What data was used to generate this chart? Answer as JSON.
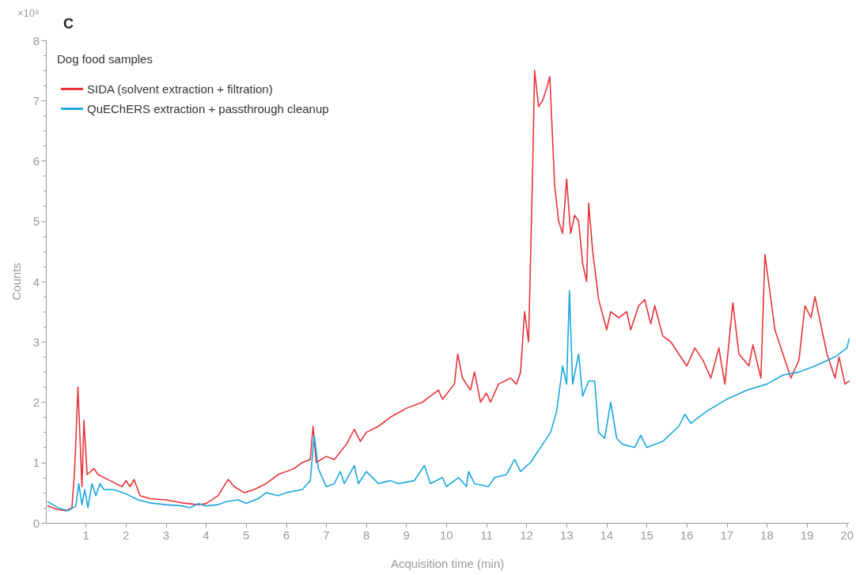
{
  "chart_data": {
    "type": "line",
    "title": "C",
    "xlabel": "Acquisition time (min)",
    "ylabel": "Counts",
    "legend_title": "Dog food samples",
    "annotations": [
      "×10⁸"
    ],
    "legend": "top left",
    "grid": false,
    "marker": "none",
    "line_style": "solid",
    "xlim": [
      0,
      20.05
    ],
    "xticks": [
      1,
      2,
      3,
      4,
      5,
      6,
      7,
      8,
      9,
      10,
      11,
      12,
      13,
      14,
      15,
      16,
      17,
      18,
      19,
      20
    ],
    "ylim": [
      0,
      8
    ],
    "yticks": [
      0,
      1,
      2,
      3,
      4,
      5,
      6,
      7,
      8
    ],
    "series": [
      {
        "name": "SIDA (solvent extraction + filtration)",
        "color": "#e8343a",
        "x": [
          0.05,
          0.3,
          0.5,
          0.65,
          0.72,
          0.8,
          0.9,
          0.95,
          1.03,
          1.2,
          1.3,
          1.6,
          1.9,
          2.0,
          2.1,
          2.2,
          2.35,
          2.6,
          3.0,
          3.4,
          3.8,
          4.0,
          4.3,
          4.55,
          4.7,
          4.95,
          5.2,
          5.5,
          5.8,
          6.2,
          6.4,
          6.6,
          6.67,
          6.75,
          7.0,
          7.2,
          7.5,
          7.7,
          7.85,
          8.0,
          8.3,
          8.6,
          9.0,
          9.4,
          9.6,
          9.8,
          9.9,
          10.2,
          10.28,
          10.4,
          10.6,
          10.7,
          10.85,
          11.0,
          11.1,
          11.3,
          11.6,
          11.75,
          11.85,
          11.95,
          12.05,
          12.15,
          12.2,
          12.3,
          12.4,
          12.5,
          12.58,
          12.7,
          12.8,
          12.9,
          13.0,
          13.1,
          13.2,
          13.3,
          13.4,
          13.5,
          13.55,
          13.65,
          13.8,
          14.0,
          14.1,
          14.3,
          14.5,
          14.6,
          14.8,
          14.95,
          15.1,
          15.2,
          15.4,
          15.6,
          15.8,
          16.0,
          16.2,
          16.4,
          16.6,
          16.8,
          16.95,
          17.15,
          17.3,
          17.55,
          17.65,
          17.85,
          17.95,
          18.2,
          18.4,
          18.6,
          18.8,
          18.95,
          19.1,
          19.2,
          19.5,
          19.7,
          19.8,
          19.95,
          20.05
        ],
        "values": [
          0.28,
          0.22,
          0.2,
          0.25,
          0.9,
          2.25,
          0.6,
          1.7,
          0.8,
          0.9,
          0.8,
          0.7,
          0.6,
          0.7,
          0.6,
          0.72,
          0.45,
          0.4,
          0.38,
          0.33,
          0.3,
          0.32,
          0.45,
          0.72,
          0.6,
          0.5,
          0.55,
          0.65,
          0.8,
          0.9,
          1.0,
          1.05,
          1.6,
          1.0,
          1.1,
          1.05,
          1.3,
          1.55,
          1.35,
          1.5,
          1.6,
          1.75,
          1.9,
          2.0,
          2.1,
          2.2,
          2.05,
          2.3,
          2.8,
          2.4,
          2.2,
          2.5,
          2.0,
          2.15,
          2.0,
          2.3,
          2.4,
          2.3,
          2.5,
          3.5,
          3.0,
          5.8,
          7.5,
          6.9,
          7.0,
          7.2,
          7.4,
          5.6,
          5.0,
          4.8,
          5.7,
          4.8,
          5.1,
          5.0,
          4.3,
          4.0,
          5.3,
          4.5,
          3.7,
          3.2,
          3.5,
          3.4,
          3.5,
          3.2,
          3.6,
          3.7,
          3.3,
          3.6,
          3.1,
          3.0,
          2.8,
          2.6,
          2.9,
          2.7,
          2.4,
          2.9,
          2.3,
          3.65,
          2.8,
          2.6,
          2.95,
          2.4,
          4.45,
          3.2,
          2.8,
          2.4,
          2.7,
          3.6,
          3.4,
          3.75,
          2.8,
          2.4,
          2.75,
          2.3,
          2.35
        ]
      },
      {
        "name": "QuEChERS extraction + passthrough cleanup",
        "color": "#1aa7e0",
        "x": [
          0.05,
          0.3,
          0.55,
          0.75,
          0.82,
          0.9,
          0.97,
          1.05,
          1.15,
          1.25,
          1.35,
          1.45,
          1.7,
          2.0,
          2.3,
          2.6,
          3.0,
          3.4,
          3.6,
          3.8,
          4.0,
          4.3,
          4.5,
          4.8,
          5.0,
          5.3,
          5.5,
          5.8,
          6.0,
          6.4,
          6.6,
          6.7,
          6.8,
          7.0,
          7.2,
          7.35,
          7.45,
          7.7,
          7.8,
          8.0,
          8.3,
          8.6,
          8.8,
          9.2,
          9.45,
          9.6,
          9.9,
          10.0,
          10.3,
          10.5,
          10.55,
          10.7,
          11.05,
          11.2,
          11.5,
          11.7,
          11.85,
          12.1,
          12.4,
          12.6,
          12.75,
          12.9,
          13.0,
          13.07,
          13.15,
          13.3,
          13.4,
          13.55,
          13.7,
          13.8,
          13.95,
          14.1,
          14.25,
          14.4,
          14.7,
          14.85,
          15.0,
          15.4,
          15.8,
          15.95,
          16.1,
          16.5,
          17.0,
          17.5,
          18.0,
          18.4,
          18.8,
          19.2,
          19.7,
          20.0,
          20.05
        ],
        "values": [
          0.35,
          0.25,
          0.2,
          0.28,
          0.65,
          0.3,
          0.55,
          0.25,
          0.65,
          0.45,
          0.65,
          0.55,
          0.55,
          0.48,
          0.38,
          0.33,
          0.3,
          0.28,
          0.25,
          0.32,
          0.28,
          0.3,
          0.35,
          0.38,
          0.32,
          0.4,
          0.5,
          0.45,
          0.5,
          0.55,
          0.7,
          1.45,
          0.9,
          0.6,
          0.65,
          0.85,
          0.65,
          0.95,
          0.65,
          0.85,
          0.65,
          0.7,
          0.65,
          0.7,
          0.95,
          0.65,
          0.75,
          0.6,
          0.75,
          0.6,
          0.85,
          0.65,
          0.6,
          0.75,
          0.8,
          1.05,
          0.85,
          1.0,
          1.3,
          1.5,
          1.85,
          2.6,
          2.3,
          3.85,
          2.3,
          2.8,
          2.1,
          2.35,
          2.35,
          1.5,
          1.4,
          2.0,
          1.4,
          1.3,
          1.25,
          1.45,
          1.25,
          1.35,
          1.6,
          1.8,
          1.65,
          1.85,
          2.05,
          2.2,
          2.3,
          2.45,
          2.5,
          2.6,
          2.75,
          2.9,
          3.05
        ]
      }
    ]
  }
}
